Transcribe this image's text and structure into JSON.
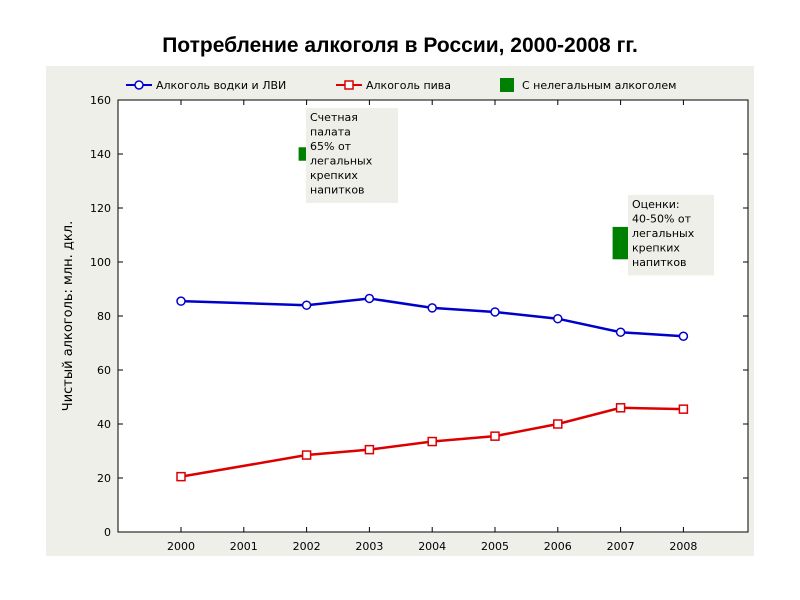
{
  "title": "Потребление  алкоголя  в  России, 2000-2008 гг.",
  "chart_data": {
    "type": "line",
    "ylabel": "Чистый  алкоголь: млн. дкл.",
    "xlabel": "",
    "ylim": [
      0,
      160
    ],
    "yticks": [
      "0",
      "20",
      "40",
      "60",
      "80",
      "100",
      "120",
      "140",
      "160"
    ],
    "x": [
      "2000",
      "2001",
      "2002",
      "2003",
      "2004",
      "2005",
      "2006",
      "2007",
      "2008"
    ],
    "grid": false,
    "legend_position": "top",
    "series": [
      {
        "name": "Алкоголь водки и ЛВИ",
        "color": "#0000cc",
        "marker": "circle",
        "x": [
          "2000",
          "2002",
          "2003",
          "2004",
          "2005",
          "2006",
          "2007",
          "2008"
        ],
        "values": [
          85.5,
          84,
          86.5,
          83,
          81.5,
          79,
          74,
          72.5
        ]
      },
      {
        "name": "Алкоголь   пива",
        "color": "#dd0000",
        "marker": "square",
        "x": [
          "2000",
          "2002",
          "2003",
          "2004",
          "2005",
          "2006",
          "2007",
          "2008"
        ],
        "values": [
          20.5,
          28.5,
          30.5,
          33.5,
          35.5,
          40,
          46,
          45.5
        ]
      }
    ],
    "ranges": {
      "name": "С нелегальным алкоголем",
      "color": "#008000",
      "items": [
        {
          "x": "2002",
          "low": 137.5,
          "high": 142.5
        },
        {
          "x": "2007",
          "low": 101,
          "high": 113
        }
      ]
    },
    "annotations": [
      {
        "x": "2003",
        "lines": [
          "Счетная",
          "палата",
          "65% от",
          "легальных",
          "крепких",
          "напитков"
        ]
      },
      {
        "x": "2008",
        "lines": [
          "Оценки:",
          "40-50% от",
          "легальных",
          "крепких",
          "напитков"
        ]
      }
    ]
  }
}
